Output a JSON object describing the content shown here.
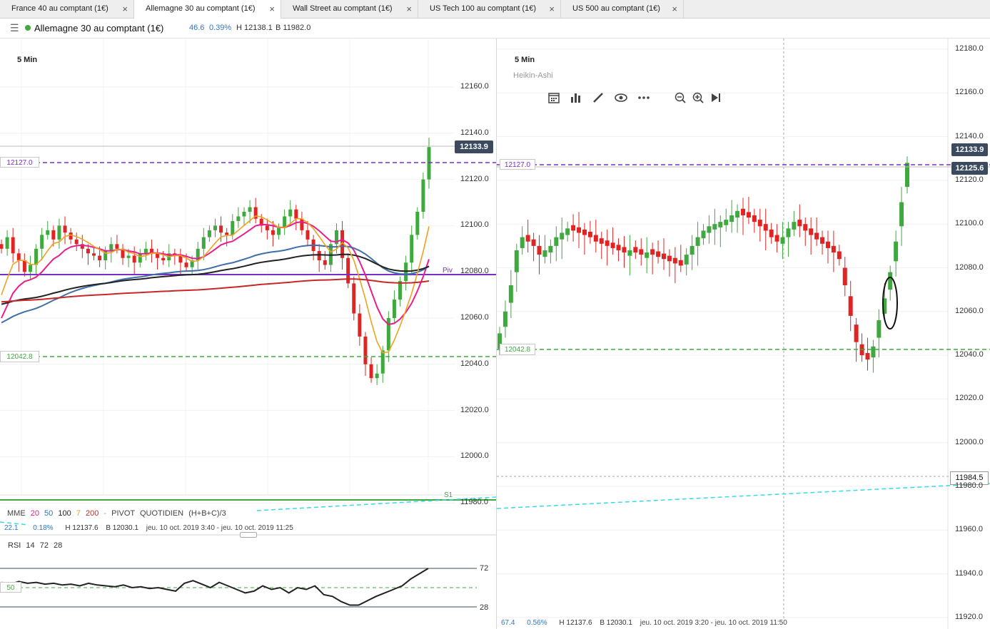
{
  "tabs": [
    {
      "label": "France 40 au comptant (1€)",
      "active": false
    },
    {
      "label": "Allemagne 30 au comptant (1€)",
      "active": true
    },
    {
      "label": "Wall Street au comptant (1€)",
      "active": false
    },
    {
      "label": "US Tech 100 au comptant (1€)",
      "active": false
    },
    {
      "label": "US 500 au comptant (1€)",
      "active": false
    }
  ],
  "tab_close": "×",
  "instrument": {
    "name": "Allemagne 30 au comptant (1€)",
    "change": "46.6",
    "change_pct": "0.39%",
    "high": "H 12138.1",
    "low": "B 11982.0"
  },
  "left_chart": {
    "timeframe": "5 Min",
    "price_tag": "12133.9",
    "level_upper": "12127.0",
    "level_lower": "12042.8",
    "piv_label": "Piv",
    "s1_label": "S1",
    "yticks": [
      "12160.0",
      "12140.0",
      "12120.0",
      "12100.0",
      "12080.0",
      "12060.0",
      "12040.0",
      "12020.0",
      "12000.0",
      "11980.0"
    ],
    "legend": {
      "mme": "MME",
      "p1": "20",
      "p2": "50",
      "p3": "100",
      "p4": "7",
      "p5": "200",
      "pivot": "PIVOT",
      "quotidien": "QUOTIDIEN",
      "formula": "(H+B+C)/3"
    },
    "status": {
      "v1": "22.1",
      "v2": "0.18%",
      "high": "H 12137.6",
      "low": "B 12030.1",
      "range": "jeu. 10 oct. 2019 3:40 - jeu. 10 oct. 2019 11:25"
    },
    "rsi": {
      "label": "RSI",
      "p1": "14",
      "p2": "72",
      "p3": "28",
      "level_mid": "50",
      "level_hi": "72",
      "level_lo": "28"
    }
  },
  "right_chart": {
    "timeframe": "5 Min",
    "chart_type": "Heikin-Ashi",
    "price_tag": "12133.9",
    "price_tag2": "12125.6",
    "level_upper": "12127.0",
    "level_lower": "12042.8",
    "crosshair_value": "11984.5",
    "yticks": [
      "12180.0",
      "12160.0",
      "12140.0",
      "12120.0",
      "12100.0",
      "12080.0",
      "12060.0",
      "12040.0",
      "12020.0",
      "12000.0",
      "11980.0",
      "11960.0",
      "11940.0",
      "11920.0"
    ],
    "status": {
      "v1": "67.4",
      "v2": "0.56%",
      "high": "H 12137.6",
      "low": "B 12030.1",
      "range": "jeu. 10 oct. 2019 3:20 - jeu. 10 oct. 2019 11:50"
    }
  },
  "colors": {
    "up": "#3fa93f",
    "down": "#e02424",
    "blue": "#2b77c6",
    "purple": "#7a2fc9",
    "pink": "#e91e8c",
    "orange": "#f0a11f",
    "red_line": "#c62828",
    "black_line": "#222222",
    "steel": "#3e6fa8",
    "cyan": "#3ad9e6",
    "tag": "#3b4a5e"
  }
}
